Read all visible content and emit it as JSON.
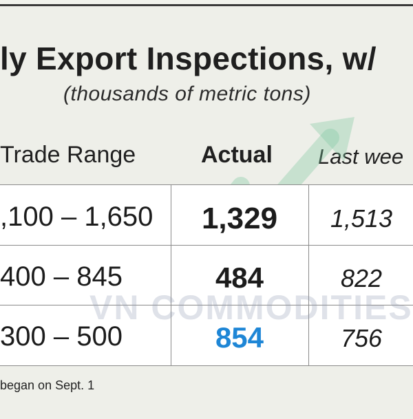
{
  "header": {
    "title": "ly Export Inspections, w/",
    "subtitle": "(thousands of metric tons)"
  },
  "columns": {
    "range": "Trade Range",
    "actual": "Actual",
    "last_week": "Last wee"
  },
  "rows": [
    {
      "range": ",100 – 1,650",
      "actual": "1,329",
      "last_week": "1,513"
    },
    {
      "range": "400 – 845",
      "actual": "484",
      "last_week": "822"
    },
    {
      "range": "300 – 500",
      "actual": "854",
      "last_week": "756"
    }
  ],
  "watermark": "VN COMMODITIES",
  "footnote": "began on Sept. 1",
  "colors": {
    "background": "#eeefe9",
    "highlight_actual": "#1e86d6",
    "text": "#1c1c1c",
    "watermark": "#8c96af",
    "watermark_arrow": "#7fc9a0"
  },
  "icons": {
    "watermark_logo": "upward-arrow-icon"
  }
}
